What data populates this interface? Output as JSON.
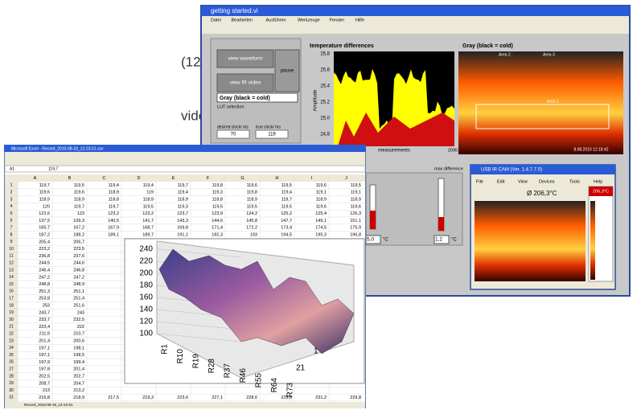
{
  "intro_text": [
    "(120 Hz) with a wide",
    "video, snapshot)"
  ],
  "labview": {
    "title": "getting started.vi",
    "menu": [
      "Datei",
      "Bearbeiten",
      "Ausführen",
      "Werkzeuge",
      "Fenster",
      "Hilfe"
    ],
    "buttons": [
      "view waveform",
      "view IR video",
      "pause"
    ],
    "lut": "Gray (black = cold)",
    "lut_label": "LUT selection",
    "desired_clock_label": "desired clock/ ms",
    "desired_clock": "70",
    "true_clock_label": "true clock/ ms",
    "true_clock": "119",
    "plot": {
      "title": "temperature differences",
      "y_label": "Amplitude",
      "yticks": [
        "25,8",
        "25,6",
        "25,4",
        "25,2",
        "25,0",
        "24,8"
      ],
      "xticks": [
        "0",
        "2000"
      ],
      "x_label": "measurements"
    },
    "ir_title": "Gray (black = cold)",
    "areas": [
      "Area 1",
      "Area 2",
      "Area 3"
    ],
    "ir_timestamp": "8.08.2010 12:18:42",
    "max_diff_label": "max difference",
    "readings": [
      "5,0",
      "1,2"
    ],
    "unit": "°C",
    "ircam": {
      "title": "USB IR CAM (Ver. 1.4.7.7.0)",
      "menu": [
        "File",
        "Edit",
        "View",
        "Devices",
        "Tools",
        "Help"
      ],
      "reading": "Ø 206,3°C",
      "scale_max": "206,3°C"
    }
  },
  "excel": {
    "title": "Microsoft Excel - Record_2010-08-18_12-23-51.csv",
    "cell_ref": "A1",
    "formula": "119,7",
    "columns": [
      "A",
      "B",
      "C",
      "D",
      "E",
      "F",
      "G",
      "H",
      "I",
      "J"
    ],
    "row_headers": [
      "1",
      "2",
      "3",
      "4",
      "5",
      "6",
      "7",
      "8",
      "9",
      "10",
      "11",
      "12",
      "13",
      "14",
      "15",
      "16",
      "17",
      "18",
      "19",
      "20",
      "21",
      "22",
      "23",
      "24",
      "25",
      "26",
      "27",
      "28",
      "29",
      "30",
      "31"
    ],
    "rows": [
      [
        "119,7",
        "119,5",
        "119,4",
        "119,4",
        "119,7",
        "119,8",
        "119,6",
        "119,5",
        "119,6",
        "119,5"
      ],
      [
        "119,6",
        "119,6",
        "118,9",
        "119",
        "119,4",
        "119,3",
        "119,8",
        "119,4",
        "119,1",
        "119,1"
      ],
      [
        "118,9",
        "118,9",
        "118,8",
        "118,9",
        "118,9",
        "118,8",
        "118,9",
        "118,7",
        "118,9",
        "118,9"
      ],
      [
        "120",
        "119,7",
        "119,7",
        "119,5",
        "119,3",
        "119,5",
        "119,5",
        "119,5",
        "119,6",
        "119,6"
      ],
      [
        "122,6",
        "123",
        "123,2",
        "123,2",
        "123,7",
        "123,9",
        "124,2",
        "125,2",
        "125,4",
        "126,3"
      ],
      [
        "137,5",
        "139,3",
        "140,5",
        "141,7",
        "143,3",
        "144,6",
        "145,8",
        "147,7",
        "149,1",
        "151,1"
      ],
      [
        "165,7",
        "167,2",
        "167,9",
        "168,7",
        "169,8",
        "171,4",
        "172,2",
        "173,4",
        "174,5",
        "175,9"
      ],
      [
        "187,2",
        "188,2",
        "189,1",
        "189,7",
        "191,1",
        "192,3",
        "193",
        "194,5",
        "195,3",
        "196,8"
      ],
      [
        "205,4",
        "206,7"
      ],
      [
        "223,2",
        "223,5"
      ],
      [
        "236,8",
        "237,6"
      ],
      [
        "244,5",
        "244,6"
      ],
      [
        "246,4",
        "246,8"
      ],
      [
        "247,2",
        "247,2"
      ],
      [
        "248,8",
        "248,9"
      ],
      [
        "251,3",
        "251,1"
      ],
      [
        "253,8",
        "251,4"
      ],
      [
        "253",
        "251,6"
      ],
      [
        "243,7",
        "243"
      ],
      [
        "233,7",
        "232,5"
      ],
      [
        "223,4",
        "222"
      ],
      [
        "211,9",
        "210,7"
      ],
      [
        "201,4",
        "200,6"
      ],
      [
        "197,1",
        "198,1"
      ],
      [
        "197,1",
        "198,5"
      ],
      [
        "197,9",
        "199,4"
      ],
      [
        "197,8",
        "201,4"
      ],
      [
        "202,5",
        "202,7"
      ],
      [
        "208,7",
        "204,7"
      ],
      [
        "213",
        "213,2"
      ],
      [
        "216,8",
        "218,9",
        "217,5",
        "219,3",
        "223,6",
        "227,1",
        "228,6",
        "225,9",
        "231,2",
        "229,8"
      ]
    ],
    "chart": {
      "yticks": [
        "240",
        "220",
        "200",
        "180",
        "160",
        "140",
        "120",
        "100"
      ],
      "xticks": [
        "R1",
        "R10",
        "R19",
        "R28",
        "R37",
        "R46",
        "R55",
        "R64",
        "R73"
      ],
      "depth_ticks": [
        "1",
        "21"
      ]
    },
    "sheet_tab": "Record_2010-08-18_12-23-51"
  }
}
